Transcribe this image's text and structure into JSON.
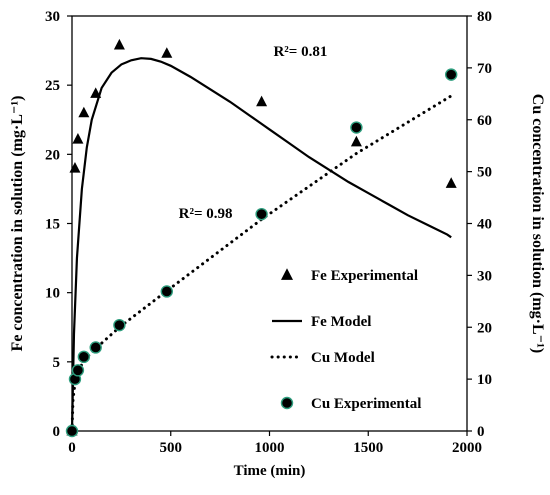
{
  "chart_data": {
    "type": "scatter",
    "title": "",
    "xlabel": "Time (min)",
    "ylabel_left": "Fe concentration in solution (mg·L⁻¹)",
    "ylabel_right": "Cu concentration in solution (mg·L⁻¹)",
    "xlim": [
      0,
      2000
    ],
    "ylim_left": [
      0,
      30
    ],
    "ylim_right": [
      0,
      80
    ],
    "x_ticks": [
      0,
      500,
      1000,
      1500,
      2000
    ],
    "y_left_ticks": [
      0,
      5,
      10,
      15,
      20,
      25,
      30
    ],
    "y_right_ticks": [
      0,
      10,
      20,
      30,
      40,
      50,
      60,
      70,
      80
    ],
    "grid": false,
    "legend_position": "bottom-right",
    "series": [
      {
        "name": "Fe Experimental",
        "kind": "scatter",
        "marker": "triangle",
        "axis": "left",
        "color": "#000000",
        "x": [
          0,
          15,
          30,
          60,
          120,
          240,
          480,
          960,
          1440,
          1920
        ],
        "y": [
          0,
          19.0,
          21.1,
          23.0,
          24.4,
          27.9,
          27.3,
          23.8,
          20.9,
          17.9
        ]
      },
      {
        "name": "Fe Model",
        "kind": "line",
        "style": "solid",
        "axis": "left",
        "color": "#000000",
        "x": [
          0,
          10,
          25,
          50,
          75,
          100,
          150,
          200,
          250,
          300,
          350,
          400,
          450,
          500,
          600,
          700,
          800,
          900,
          1000,
          1100,
          1200,
          1300,
          1400,
          1500,
          1600,
          1700,
          1800,
          1900,
          1920
        ],
        "y": [
          0,
          7,
          12.5,
          17.5,
          20.5,
          22.5,
          24.8,
          25.9,
          26.5,
          26.8,
          26.95,
          26.9,
          26.7,
          26.4,
          25.6,
          24.7,
          23.8,
          22.8,
          21.8,
          20.8,
          19.8,
          18.9,
          18.0,
          17.2,
          16.4,
          15.6,
          14.9,
          14.2,
          14.0
        ]
      },
      {
        "name": "Cu Model",
        "kind": "line",
        "style": "dotted",
        "axis": "right",
        "color": "#000000",
        "x": [
          0,
          5,
          15,
          30,
          60,
          120,
          240,
          480,
          960,
          1440,
          1920
        ],
        "y": [
          0,
          6,
          9.2,
          11.4,
          13.6,
          15.9,
          20.0,
          27.0,
          40.8,
          53.5,
          64.6
        ]
      },
      {
        "name": "Cu Experimental",
        "kind": "scatter",
        "marker": "circle",
        "axis": "right",
        "color": "#000000",
        "edge_color": "#2e9e7e",
        "x": [
          0,
          15,
          30,
          60,
          120,
          240,
          480,
          960,
          1440,
          1920
        ],
        "y": [
          0,
          10,
          11.7,
          14.3,
          16.1,
          20.4,
          26.9,
          41.8,
          58.5,
          68.7
        ]
      }
    ],
    "annotations": [
      {
        "text": "R²= 0.81",
        "x": 1020,
        "y": 27.1,
        "axis": "left"
      },
      {
        "text": "R²= 0.98",
        "x": 540,
        "y": 15.4,
        "axis": "left"
      }
    ]
  }
}
